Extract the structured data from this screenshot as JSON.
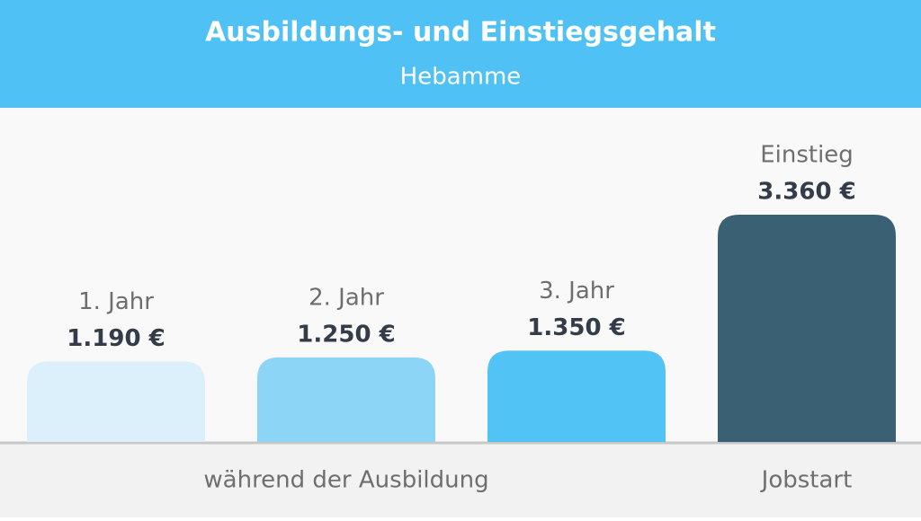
{
  "chart_data": {
    "type": "bar",
    "title": "Ausbildungs- und Einstiegsgehalt",
    "subtitle": "Hebamme",
    "categories": [
      "1. Jahr",
      "2. Jahr",
      "3. Jahr",
      "Einstieg"
    ],
    "values": [
      1190,
      1250,
      1350,
      3360
    ],
    "value_labels": [
      "1.190 €",
      "1.250 €",
      "1.350 €",
      "3.360 €"
    ],
    "colors": [
      "#dcf0fc",
      "#8dd5f7",
      "#52c3f5",
      "#3a6074"
    ],
    "group_labels": [
      "während der Ausbildung",
      "Jobstart"
    ]
  }
}
